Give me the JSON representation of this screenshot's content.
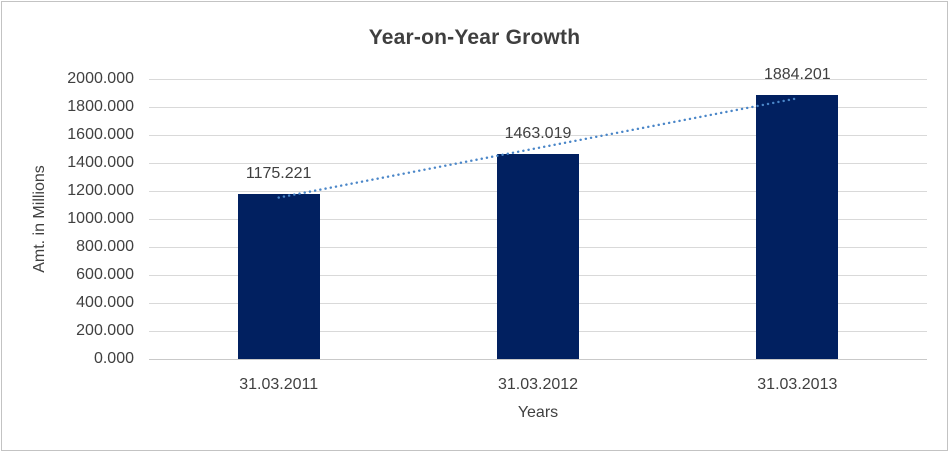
{
  "chart_data": {
    "type": "bar",
    "title": "Year-on-Year Growth",
    "xlabel": "Years",
    "ylabel": "Amt. in Millions",
    "categories": [
      "31.03.2011",
      "31.03.2012",
      "31.03.2013"
    ],
    "values": [
      1175.221,
      1463.019,
      1884.201
    ],
    "data_labels": [
      "1175.221",
      "1463.019",
      "1884.201"
    ],
    "ylim": [
      0,
      2000
    ],
    "y_tick_step": 200,
    "y_tick_labels": [
      "0.000",
      "200.000",
      "400.000",
      "600.000",
      "800.000",
      "1000.000",
      "1200.000",
      "1400.000",
      "1600.000",
      "1800.000",
      "2000.000"
    ],
    "grid": true,
    "legend": "none",
    "trendline": {
      "type": "linear",
      "style": "dotted"
    },
    "colors": {
      "bar": "#012060",
      "trendline": "#4a86c8",
      "gridline": "#d9d9d9",
      "axis_line": "#c9c9c9",
      "label_text": "#404040",
      "title_text": "#3f3f3f",
      "border": "#c3c3c3",
      "background": "#ffffff"
    }
  }
}
